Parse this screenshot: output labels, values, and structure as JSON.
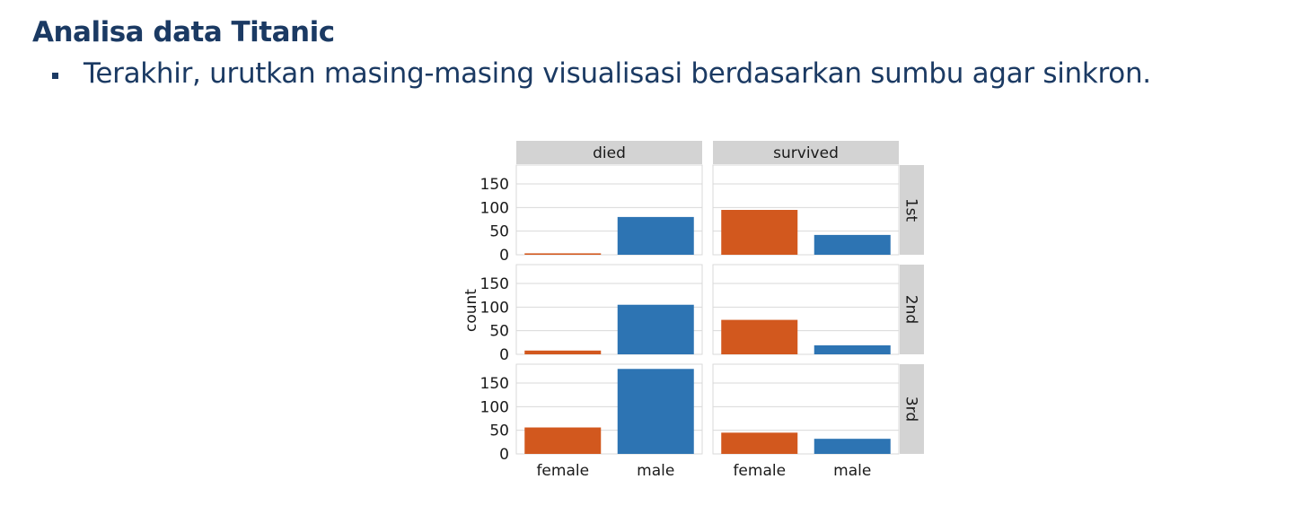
{
  "slide": {
    "title": "Analisa data Titanic",
    "bullet": "Terakhir, urutkan masing-masing visualisasi berdasarkan sumbu agar sinkron."
  },
  "chart_data": {
    "type": "bar",
    "title": "",
    "xlabel": "",
    "ylabel": "count",
    "ylim": [
      0,
      190
    ],
    "yticks": [
      0,
      50,
      100,
      150
    ],
    "categories": [
      "female",
      "male"
    ],
    "col_facets": [
      "died",
      "survived"
    ],
    "row_facets": [
      "1st",
      "2nd",
      "3rd"
    ],
    "colors": {
      "female": "#d2581e",
      "male": "#2d74b3",
      "strip": "#d3d3d3",
      "grid": "#d9d9d9"
    },
    "grid": true,
    "legend": "none",
    "panels": [
      {
        "col": "died",
        "row": "1st",
        "values": [
          3,
          80
        ]
      },
      {
        "col": "survived",
        "row": "1st",
        "values": [
          95,
          42
        ]
      },
      {
        "col": "died",
        "row": "2nd",
        "values": [
          8,
          105
        ]
      },
      {
        "col": "survived",
        "row": "2nd",
        "values": [
          73,
          19
        ]
      },
      {
        "col": "died",
        "row": "3rd",
        "values": [
          56,
          180
        ]
      },
      {
        "col": "survived",
        "row": "3rd",
        "values": [
          45,
          32
        ]
      }
    ]
  }
}
